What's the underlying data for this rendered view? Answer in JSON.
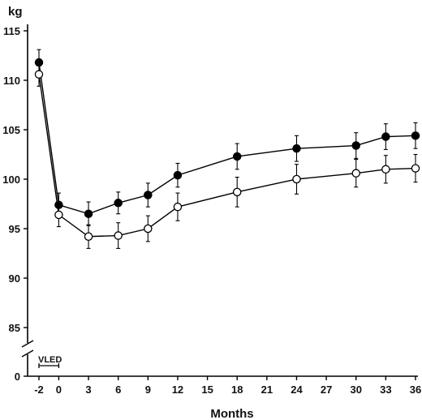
{
  "chart_data": {
    "type": "line",
    "ylabel": "kg",
    "xlabel": "Months",
    "x_ticks": [
      -2,
      0,
      3,
      6,
      9,
      12,
      15,
      18,
      21,
      24,
      27,
      30,
      33,
      36
    ],
    "y_ticks": [
      85,
      90,
      95,
      100,
      105,
      110,
      115
    ],
    "y_zero_label": "0",
    "ylim": [
      85,
      115
    ],
    "y_axis_break": true,
    "grid": false,
    "legend": "none",
    "annotation": {
      "text": "VLED",
      "x_start": -2,
      "x_end": 0
    },
    "series": [
      {
        "marker": "filled-circle",
        "color": "#000000",
        "x": [
          -2,
          0,
          3,
          6,
          9,
          12,
          18,
          24,
          30,
          33,
          36
        ],
        "values": [
          111.8,
          97.4,
          96.5,
          97.6,
          98.4,
          100.4,
          102.3,
          103.1,
          103.4,
          104.3,
          104.4
        ],
        "error": [
          1.3,
          1.2,
          1.2,
          1.1,
          1.2,
          1.2,
          1.3,
          1.3,
          1.3,
          1.3,
          1.3
        ]
      },
      {
        "marker": "open-circle",
        "color": "#000000",
        "x": [
          -2,
          0,
          3,
          6,
          9,
          12,
          18,
          24,
          30,
          33,
          36
        ],
        "values": [
          110.6,
          96.4,
          94.2,
          94.3,
          95.0,
          97.2,
          98.7,
          100.0,
          100.6,
          101.0,
          101.1
        ],
        "error": [
          1.2,
          1.2,
          1.2,
          1.3,
          1.3,
          1.4,
          1.5,
          1.5,
          1.4,
          1.4,
          1.4
        ]
      }
    ]
  }
}
